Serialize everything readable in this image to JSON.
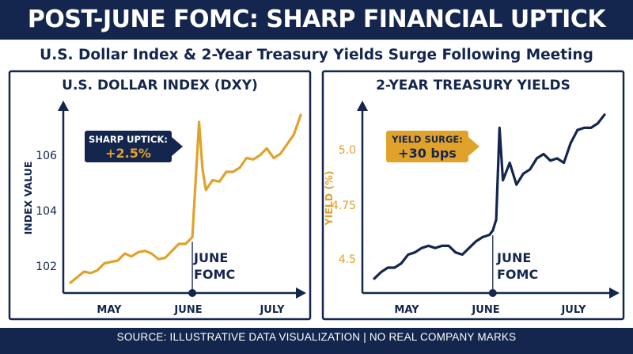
{
  "title": "POST-JUNE FOMC: SHARP FINANCIAL UPTICK",
  "subtitle": "U.S. Dollar Index & 2-Year Treasury Yields Surge Following Meeting",
  "footer": "SOURCE: ILLUSTRATIVE DATA VISUALIZATION | NO REAL COMPANY MARKS",
  "colors": {
    "navy": "#14264d",
    "gold": "#e1a22c",
    "white": "#ffffff"
  },
  "chart_data": [
    {
      "type": "line",
      "title": "U.S. DOLLAR INDEX (DXY)",
      "ylabel": "INDEX VALUE",
      "xlabel": "",
      "x_ticks": [
        "MAY",
        "JUNE",
        "JULY"
      ],
      "y_ticks": [
        102,
        104,
        106
      ],
      "ylim": [
        101.3,
        107.8
      ],
      "grid": false,
      "series": [
        {
          "color": "#e1a22c",
          "x": [
            0,
            1,
            2,
            3,
            4,
            5,
            6,
            7,
            8,
            9,
            10,
            11,
            12,
            13,
            14,
            15,
            16,
            17,
            18,
            18.5,
            19,
            19.5,
            20,
            21,
            22,
            23,
            24,
            25,
            26,
            27,
            28,
            29,
            30,
            31,
            32,
            33,
            34
          ],
          "values": [
            101.4,
            101.6,
            101.8,
            101.75,
            101.85,
            102.1,
            102.15,
            102.2,
            102.45,
            102.35,
            102.5,
            102.55,
            102.45,
            102.25,
            102.3,
            102.55,
            102.8,
            102.8,
            103.05,
            105.1,
            107.2,
            105.5,
            104.75,
            105.1,
            105.05,
            105.4,
            105.4,
            105.55,
            105.9,
            105.85,
            106.0,
            106.25,
            105.9,
            106.05,
            106.4,
            106.75,
            107.45
          ]
        }
      ],
      "event_line": {
        "x": 18,
        "label": [
          "JUNE",
          "FOMC"
        ]
      },
      "callout": {
        "label": "SHARP UPTICK:",
        "value": "+2.5%"
      }
    },
    {
      "type": "line",
      "title": "2-YEAR TREASURY YIELDS",
      "ylabel": "YIELD (%)",
      "xlabel": "",
      "x_ticks": [
        "MAY",
        "JUNE",
        "JULY"
      ],
      "y_ticks": [
        "4.5",
        "4.75",
        "5.0"
      ],
      "ylim": [
        4.35,
        5.2
      ],
      "grid": false,
      "series": [
        {
          "color": "#14264d",
          "x": [
            0,
            1,
            2,
            3,
            4,
            5,
            6,
            7,
            8,
            9,
            10,
            11,
            12,
            13,
            14,
            15,
            16,
            17,
            17.5,
            18,
            18.5,
            19,
            20,
            21,
            22,
            23,
            24,
            25,
            26,
            27,
            28,
            29,
            30,
            31,
            32,
            33,
            34
          ],
          "values": [
            4.41,
            4.44,
            4.46,
            4.46,
            4.48,
            4.52,
            4.53,
            4.55,
            4.56,
            4.55,
            4.56,
            4.56,
            4.53,
            4.52,
            4.55,
            4.58,
            4.6,
            4.61,
            4.63,
            4.68,
            5.1,
            4.86,
            4.94,
            4.84,
            4.89,
            4.91,
            4.96,
            4.98,
            4.95,
            4.96,
            4.94,
            5.03,
            5.09,
            5.1,
            5.1,
            5.12,
            5.16
          ]
        }
      ],
      "event_line": {
        "x": 17.5,
        "label": [
          "JUNE",
          "FOMC"
        ]
      },
      "callout": {
        "label": "YIELD SURGE:",
        "value": "+30 bps"
      }
    }
  ]
}
